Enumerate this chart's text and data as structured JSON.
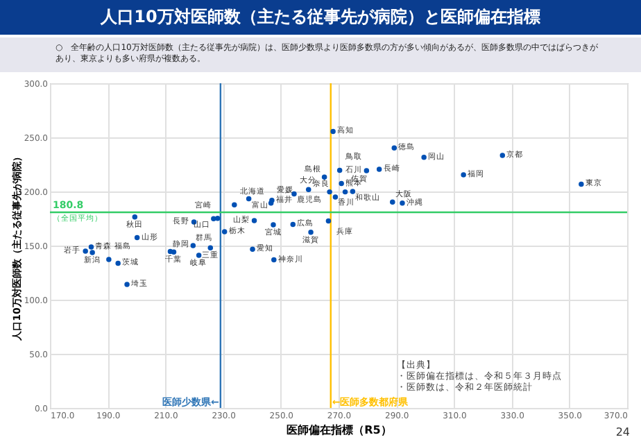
{
  "chart_data": {
    "type": "scatter",
    "title": "人口10万対医師数（主たる従事先が病院）と医師偏在指標",
    "subtitle": "○　全年齢の人口10万対医師数（主たる従事先が病院）は、医師少数県より医師多数県の方が多い傾向があるが、医師多数県の中ではばらつきがあり、東京よりも多い府県が複数ある。",
    "xlabel": "医師偏在指標（R5）",
    "ylabel": "人口10万対医師数（主たる従事先が病院）",
    "x": [
      199.4,
      200.2,
      184.3,
      182.3,
      184.7,
      190.4,
      193.6,
      196.7,
      211.7,
      212.9,
      219.9,
      228.1,
      219.6,
      221.6,
      225.6,
      226.7,
      230.5,
      233.9,
      238.9,
      240.8,
      240.2,
      247.6,
      246.9,
      246.6,
      247.4,
      254.6,
      254.2,
      259.6,
      265.1,
      260.4,
      266.5,
      266.9,
      268.1,
      289.3,
      299.6,
      326.8,
      313.3,
      354.1,
      279.7,
      284.1,
      270.4,
      271.0,
      274.9,
      272.3,
      268.9,
      288.7,
      292.1
    ],
    "series": [
      {
        "color": "#0050b4",
        "values": [
          176.5,
          157.3,
          148.7,
          144.9,
          143.6,
          137.2,
          133.7,
          114.1,
          144.5,
          144.0,
          171.8,
          175.2,
          150.0,
          141.0,
          147.9,
          174.8,
          162.8,
          187.6,
          193.2,
          173.1,
          146.6,
          136.8,
          191.9,
          189.3,
          169.2,
          197.8,
          169.6,
          201.7,
          213.3,
          162.4,
          172.7,
          199.6,
          255.5,
          240.2,
          231.6,
          233.3,
          215.4,
          206.8,
          219.2,
          220.5,
          219.6,
          207.3,
          200.0,
          199.6,
          194.9,
          190.2,
          189.3
        ]
      }
    ],
    "xlim": [
      170,
      370
    ],
    "xticks": [
      {
        "value": 170,
        "label": "170.0"
      },
      {
        "value": 190,
        "label": "190.0"
      },
      {
        "value": 210,
        "label": "210.0"
      },
      {
        "value": 230,
        "label": "230.0"
      },
      {
        "value": 250,
        "label": "250.0"
      },
      {
        "value": 270,
        "label": "270.0"
      },
      {
        "value": 290,
        "label": "290.0"
      },
      {
        "value": 310,
        "label": "310.0"
      },
      {
        "value": 330,
        "label": "330.0"
      },
      {
        "value": 350,
        "label": "350.0"
      },
      {
        "value": 370,
        "label": "370.0"
      }
    ],
    "ylim": [
      0,
      300
    ],
    "yticks": [
      {
        "value": 0,
        "label": "0.0"
      },
      {
        "value": 50,
        "label": "50.0"
      },
      {
        "value": 100,
        "label": "100.0"
      },
      {
        "value": 150,
        "label": "150.0"
      },
      {
        "value": 200,
        "label": "200.0"
      },
      {
        "value": 250,
        "label": "250.0"
      },
      {
        "value": 300,
        "label": "300.0"
      }
    ],
    "grid": true,
    "marker": "circle",
    "ref_lines": [
      {
        "axis": "x",
        "value": 229.1,
        "label": "医師少数県←",
        "color": "#2e75b6"
      },
      {
        "axis": "x",
        "value": 267.3,
        "label": "←医師多数都府県",
        "color": "#ffc000"
      },
      {
        "axis": "y",
        "value": 180.8,
        "label": "180.8",
        "color": "#33cc66"
      }
    ],
    "annotations": [
      {
        "text": "秋田",
        "x": 199.4,
        "y": 176.5
      },
      {
        "text": "山形",
        "x": 200.2,
        "y": 157.3
      },
      {
        "text": "青森",
        "x": 184.3,
        "y": 148.7
      },
      {
        "text": "岩手",
        "x": 182.3,
        "y": 144.9
      },
      {
        "text": "新潟",
        "x": 184.7,
        "y": 143.6
      },
      {
        "text": "福島",
        "x": 190.4,
        "y": 137.2
      },
      {
        "text": "茨城",
        "x": 193.6,
        "y": 133.7
      },
      {
        "text": "埼玉",
        "x": 196.7,
        "y": 114.1
      },
      {
        "text": "静岡",
        "x": 211.7,
        "y": 144.5
      },
      {
        "text": "千葉",
        "x": 212.9,
        "y": 144.0
      },
      {
        "text": "長野",
        "x": 219.9,
        "y": 171.8
      },
      {
        "text": "宮崎",
        "x": 228.1,
        "y": 175.2
      },
      {
        "text": "群馬",
        "x": 219.6,
        "y": 150.0
      },
      {
        "text": "岐阜",
        "x": 221.6,
        "y": 141.0
      },
      {
        "text": "三重",
        "x": 225.6,
        "y": 147.9
      },
      {
        "text": "山口",
        "x": 226.7,
        "y": 174.8
      },
      {
        "text": "栃木",
        "x": 230.5,
        "y": 162.8
      },
      {
        "text": "北海道",
        "x": 233.9,
        "y": 187.6
      },
      {
        "text": "富山",
        "x": 238.9,
        "y": 193.2
      },
      {
        "text": "山梨",
        "x": 240.8,
        "y": 173.1
      },
      {
        "text": "愛知",
        "x": 240.2,
        "y": 146.6
      },
      {
        "text": "神奈川",
        "x": 247.6,
        "y": 136.8
      },
      {
        "text": "福井",
        "x": 246.9,
        "y": 191.9
      },
      {
        "text": "愛媛",
        "x": 246.6,
        "y": 189.3
      },
      {
        "text": "宮城",
        "x": 247.4,
        "y": 169.2
      },
      {
        "text": "鹿児島",
        "x": 254.6,
        "y": 197.8
      },
      {
        "text": "広島",
        "x": 254.2,
        "y": 169.6
      },
      {
        "text": "大分",
        "x": 259.6,
        "y": 201.7
      },
      {
        "text": "島根",
        "x": 265.1,
        "y": 213.3
      },
      {
        "text": "滋賀",
        "x": 260.4,
        "y": 162.4
      },
      {
        "text": "兵庫",
        "x": 266.5,
        "y": 172.7
      },
      {
        "text": "香川",
        "x": 266.9,
        "y": 199.6
      },
      {
        "text": "高知",
        "x": 268.1,
        "y": 255.5
      },
      {
        "text": "徳島",
        "x": 289.3,
        "y": 240.2
      },
      {
        "text": "岡山",
        "x": 299.6,
        "y": 231.6
      },
      {
        "text": "京都",
        "x": 326.8,
        "y": 233.3
      },
      {
        "text": "福岡",
        "x": 313.3,
        "y": 215.4
      },
      {
        "text": "東京",
        "x": 354.1,
        "y": 206.8
      },
      {
        "text": "石川",
        "x": 279.7,
        "y": 219.2
      },
      {
        "text": "長崎",
        "x": 284.1,
        "y": 220.5
      },
      {
        "text": "鳥取",
        "x": 270.4,
        "y": 219.6
      },
      {
        "text": "熊本",
        "x": 271.0,
        "y": 207.3
      },
      {
        "text": "和歌山",
        "x": 274.9,
        "y": 200.0
      },
      {
        "text": "佐賀",
        "x": 272.3,
        "y": 199.6
      },
      {
        "text": "奈良",
        "x": 268.9,
        "y": 194.9
      },
      {
        "text": "大阪",
        "x": 288.7,
        "y": 190.2
      },
      {
        "text": "沖縄",
        "x": 292.1,
        "y": 189.3
      },
      {
        "text": "（全国平均）",
        "x": 170,
        "y": 180.8
      },
      "【出典】",
      "・医師偏在指標は、令和５年３月時点",
      "・医師数は、令和２年医師統計",
      "24"
    ]
  }
}
